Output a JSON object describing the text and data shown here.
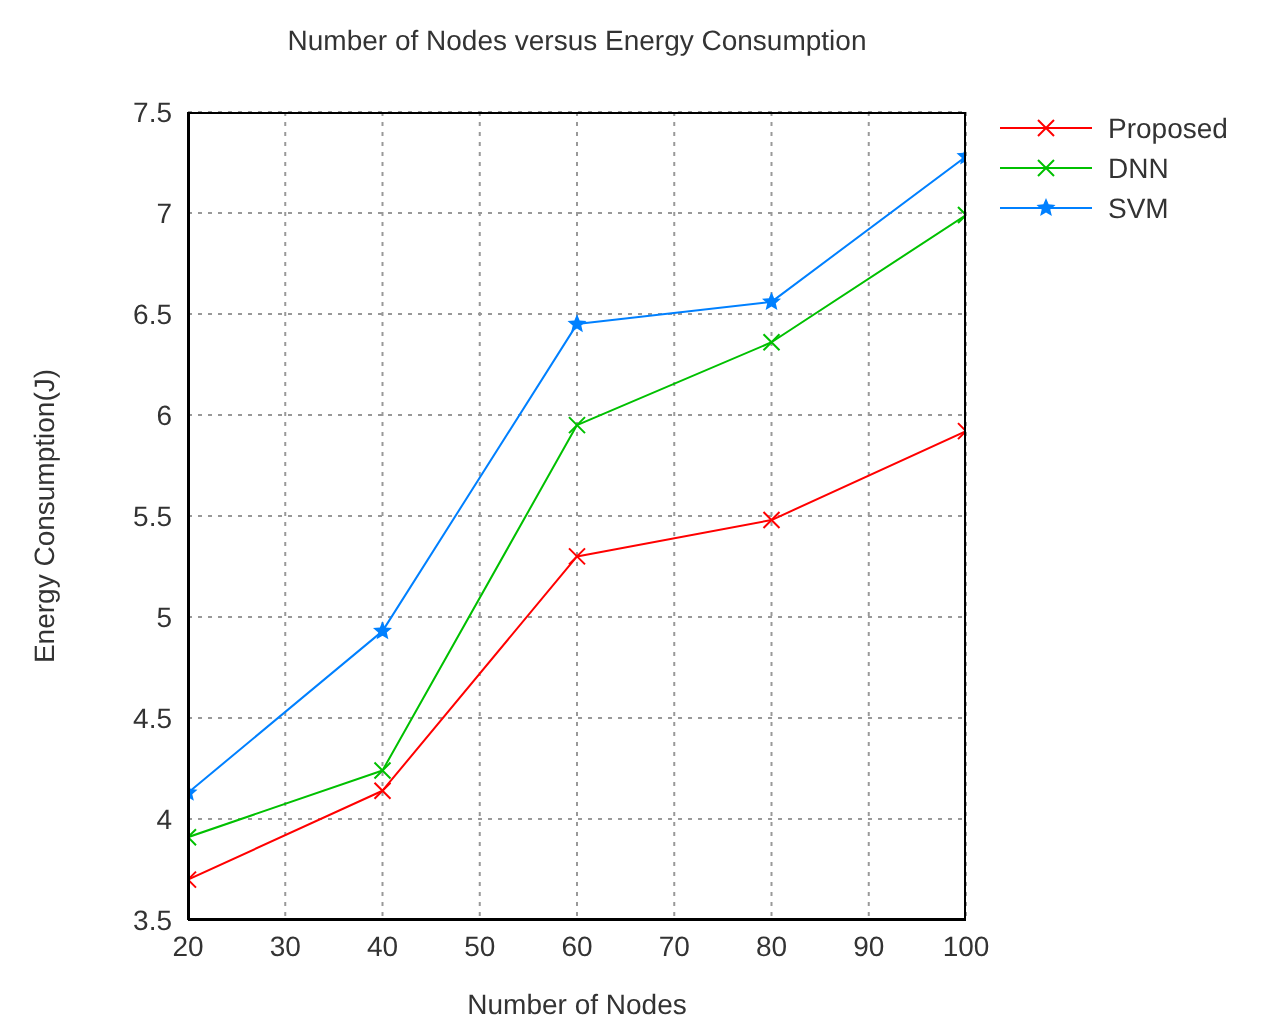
{
  "chart_data": {
    "type": "line",
    "title": "Number of Nodes versus Energy Consumption",
    "xlabel": "Number of Nodes",
    "ylabel": "Energy Consumption(J)",
    "x": [
      20,
      40,
      60,
      80,
      100
    ],
    "series": [
      {
        "name": "Proposed",
        "color": "#ff0000",
        "marker": "cross",
        "values": [
          3.7,
          4.14,
          5.3,
          5.48,
          5.92
        ]
      },
      {
        "name": "DNN",
        "color": "#00c000",
        "marker": "cross",
        "values": [
          3.91,
          4.24,
          5.95,
          6.36,
          6.99
        ]
      },
      {
        "name": "SVM",
        "color": "#0080ff",
        "marker": "star",
        "values": [
          4.13,
          4.93,
          6.45,
          6.56,
          7.28
        ]
      }
    ],
    "xlim": [
      20,
      100
    ],
    "xticks": [
      20,
      30,
      40,
      50,
      60,
      70,
      80,
      90,
      100
    ],
    "ylim": [
      3.5,
      7.5
    ],
    "yticks": [
      3.5,
      4,
      4.5,
      5,
      5.5,
      6,
      6.5,
      7,
      7.5
    ],
    "grid": true,
    "legend": "top right",
    "line_style": "solid"
  }
}
